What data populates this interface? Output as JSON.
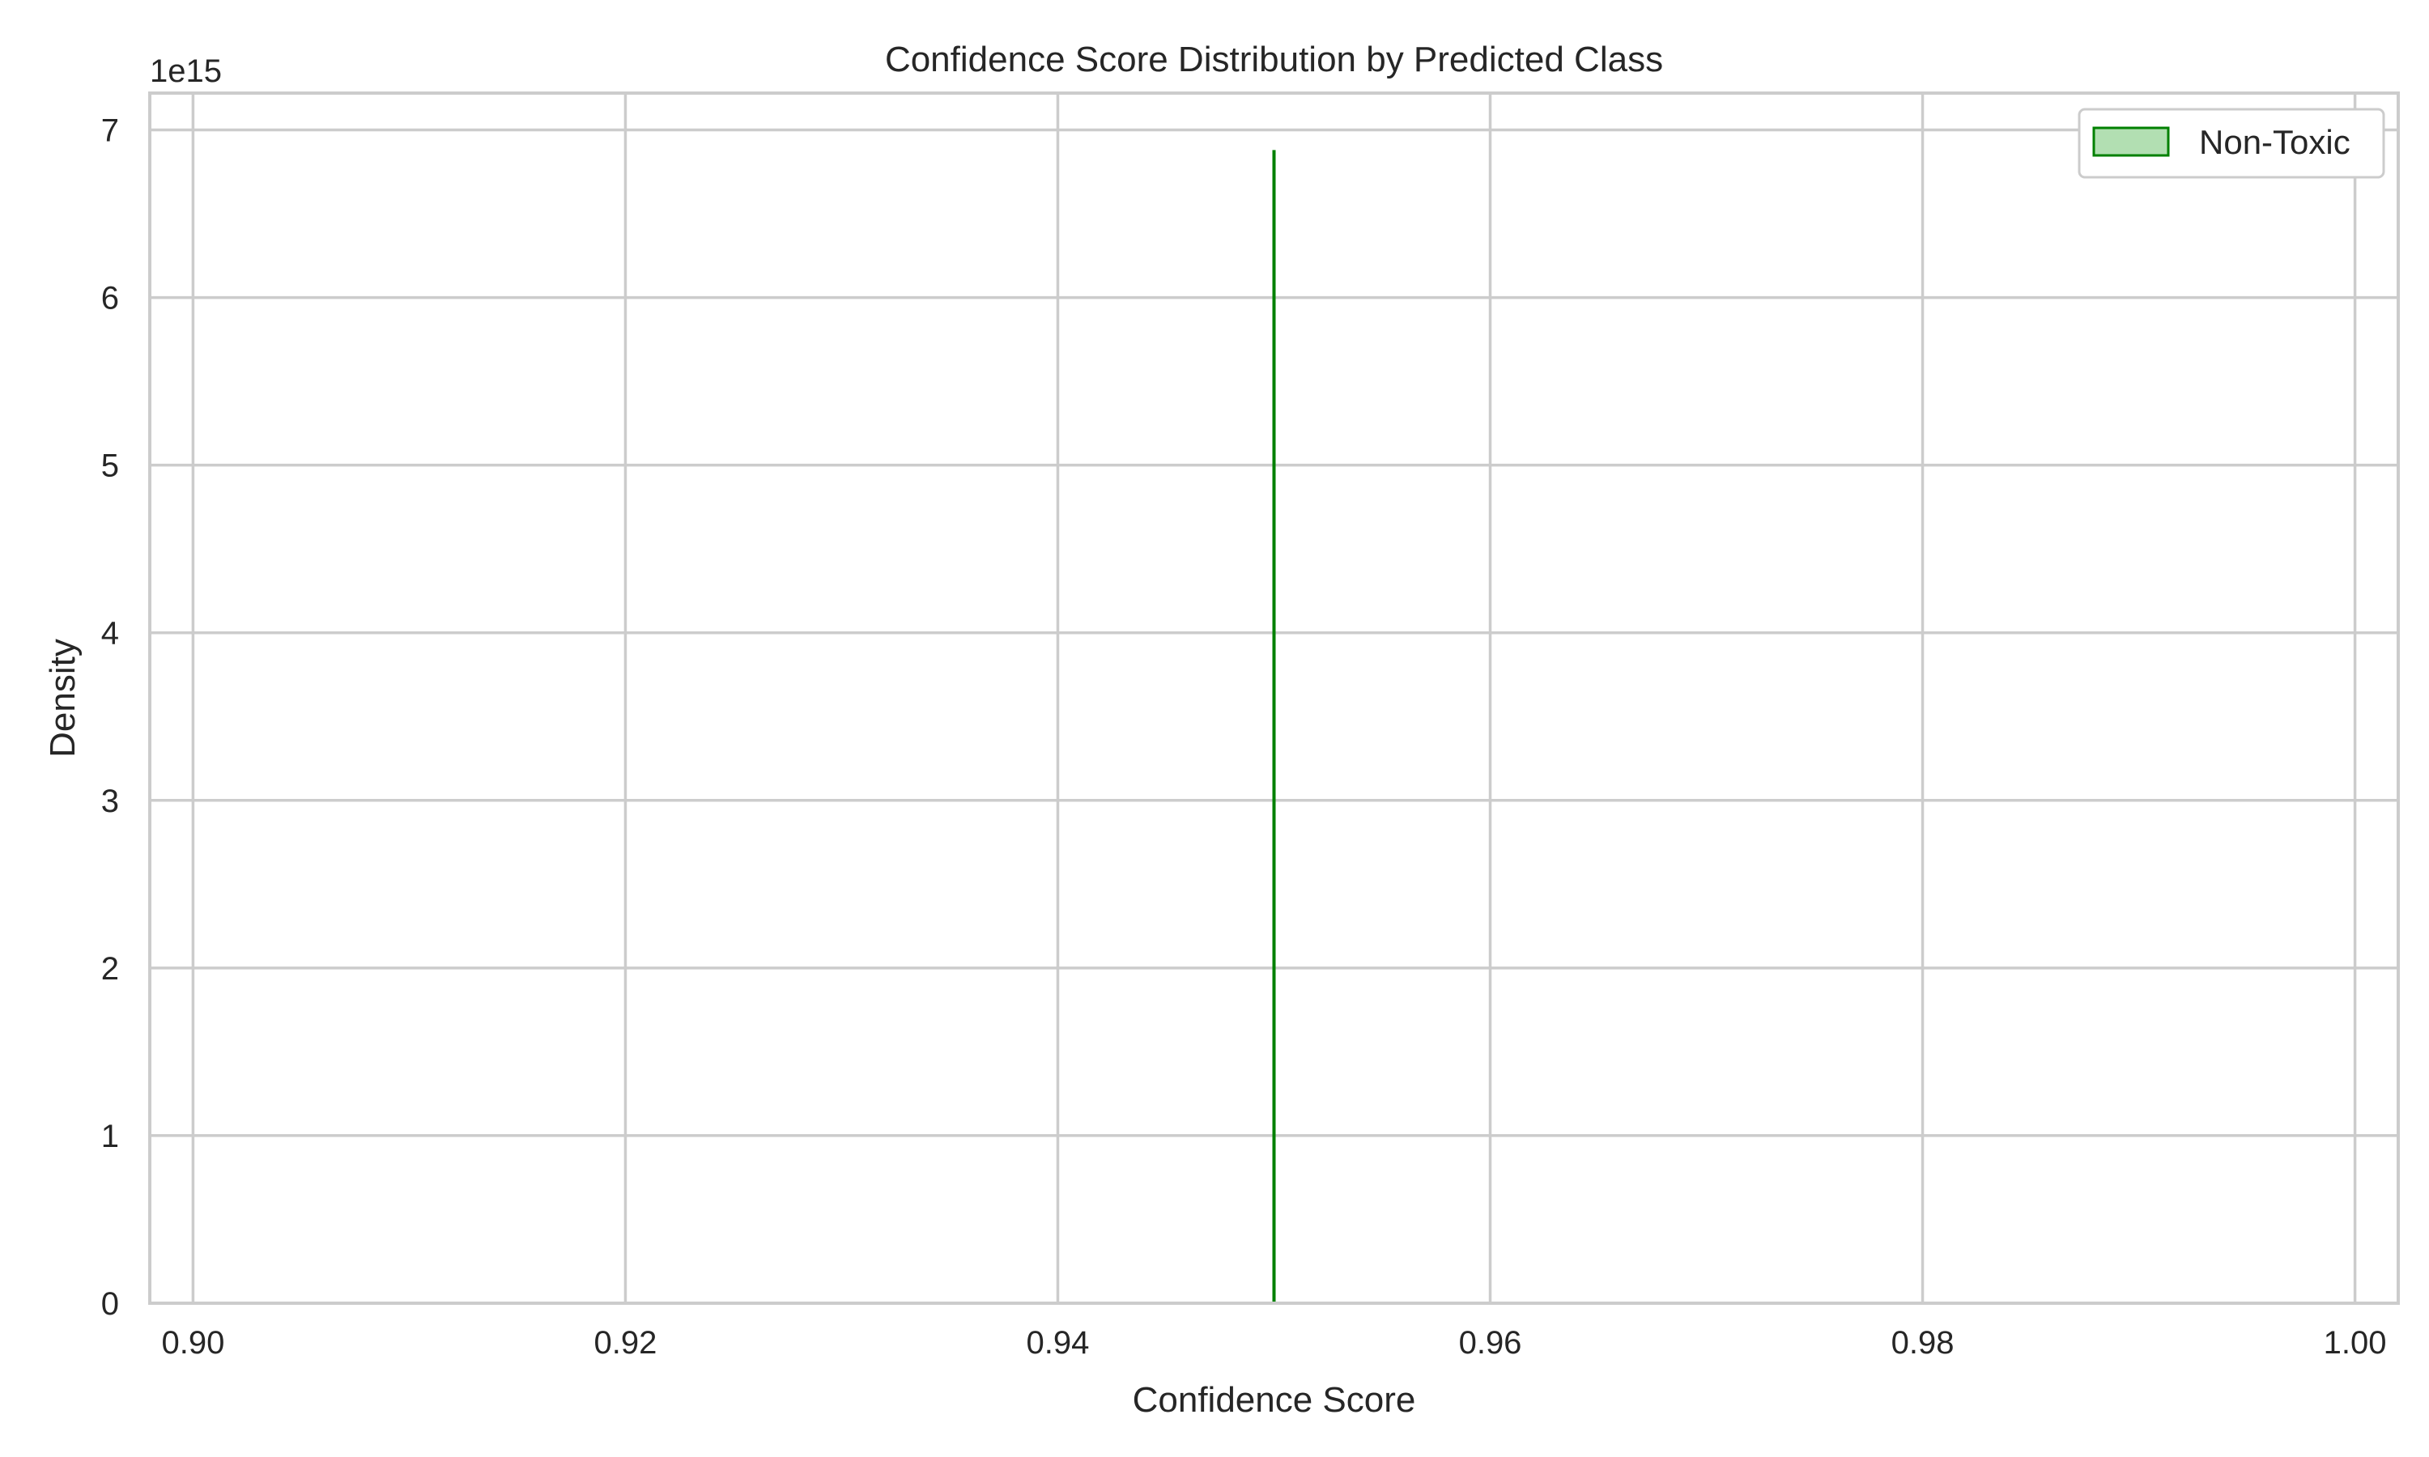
{
  "chart_data": {
    "type": "area",
    "title": "Confidence Score Distribution by Predicted Class",
    "xlabel": "Confidence Score",
    "ylabel": "Density",
    "y_offset_label": "1e15",
    "xlim": [
      0.898,
      1.002
    ],
    "ylim": [
      0,
      7.22
    ],
    "x_ticks": [
      0.9,
      0.92,
      0.94,
      0.96,
      0.98,
      1.0
    ],
    "x_tick_labels": [
      "0.90",
      "0.92",
      "0.94",
      "0.96",
      "0.98",
      "1.00"
    ],
    "y_ticks": [
      0,
      1,
      2,
      3,
      4,
      5,
      6,
      7
    ],
    "y_tick_labels": [
      "0",
      "1",
      "2",
      "3",
      "4",
      "5",
      "6",
      "7"
    ],
    "grid": true,
    "legend_position": "top-right",
    "series": [
      {
        "name": "Non-Toxic",
        "color": "#008000",
        "fill": "#b2dfb2",
        "x": [
          0.95,
          0.95
        ],
        "y": [
          0,
          6.88
        ]
      }
    ]
  }
}
